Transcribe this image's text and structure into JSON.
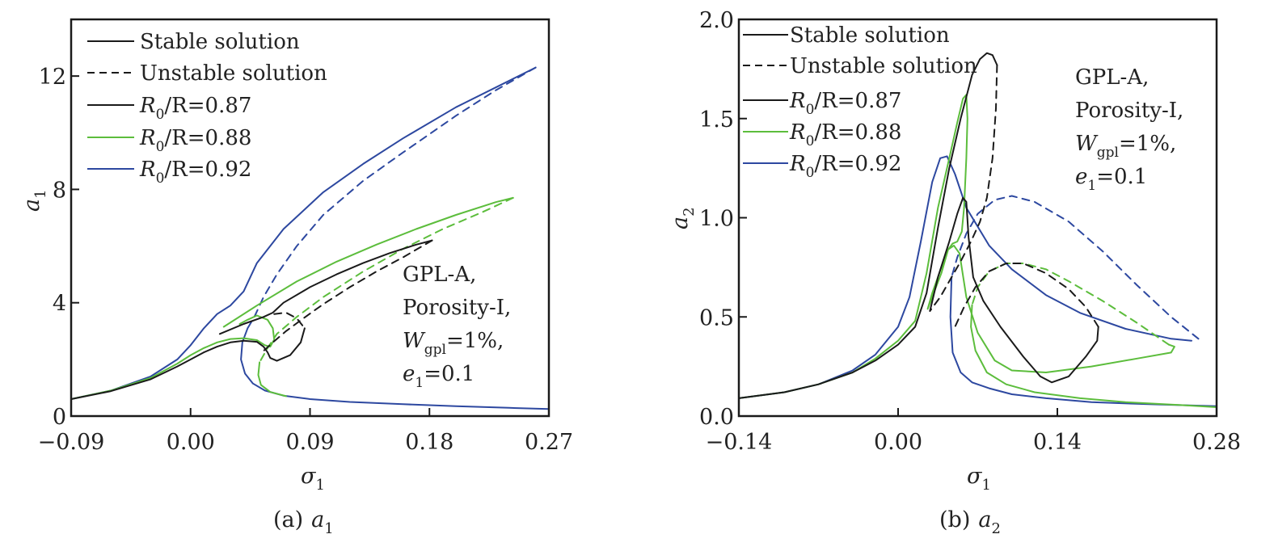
{
  "colors": {
    "r087": "#1a1a1a",
    "r088": "#5cbd3c",
    "r092": "#2d48a0",
    "axis": "#1a1a1a"
  },
  "chart_data": [
    {
      "type": "line",
      "caption": "(a) a1",
      "caption_prefix": "(a)",
      "caption_var": "a",
      "caption_sub": "1",
      "xlabel": "σ1",
      "xlabel_var": "σ",
      "xlabel_sub": "1",
      "ylabel": "a1",
      "ylabel_var": "a",
      "ylabel_sub": "1",
      "xlim": [
        -0.09,
        0.27
      ],
      "ylim": [
        0,
        14
      ],
      "xticks": [
        -0.09,
        0.0,
        0.09,
        0.18,
        0.27
      ],
      "xtick_labels": [
        "−0.09",
        "0.00",
        "0.09",
        "0.18",
        "0.27"
      ],
      "yticks": [
        0,
        4,
        8,
        12
      ],
      "ytick_labels": [
        "0",
        "4",
        "8",
        "12"
      ],
      "legend": {
        "placement": "top-left",
        "entries": [
          {
            "label": "Stable solution",
            "style": "solid",
            "color": "#1a1a1a"
          },
          {
            "label": "Unstable solution",
            "style": "dashed",
            "color": "#1a1a1a"
          },
          {
            "label": "R0/R=0.87",
            "var": "R",
            "sub": "0",
            "rest": "/R=0.87",
            "style": "solid",
            "color": "#1a1a1a"
          },
          {
            "label": "R0/R=0.88",
            "var": "R",
            "sub": "0",
            "rest": "/R=0.88",
            "style": "solid",
            "color": "#5cbd3c"
          },
          {
            "label": "R0/R=0.92",
            "var": "R",
            "sub": "0",
            "rest": "/R=0.92",
            "style": "solid",
            "color": "#2d48a0"
          }
        ]
      },
      "annotation": {
        "lines": [
          "GPL-A,",
          "Porosity-I,",
          "Wgpl=1%,",
          "e1=0.1"
        ],
        "line1": "GPL-A,",
        "line2": "Porosity-I,",
        "w_var": "W",
        "w_sub": "gpl",
        "w_rest": "=1%,",
        "e_var": "e",
        "e_sub": "1",
        "e_rest": "=0.1"
      },
      "series": [
        {
          "name": "R0/R=0.92 stable upper",
          "group": "r092",
          "style": "solid",
          "x": [
            -0.09,
            -0.06,
            -0.03,
            -0.01,
            0.0,
            0.01,
            0.02,
            0.03,
            0.04,
            0.05,
            0.07,
            0.1,
            0.13,
            0.16,
            0.2,
            0.23,
            0.26
          ],
          "y": [
            0.6,
            0.9,
            1.4,
            2.0,
            2.5,
            3.1,
            3.6,
            3.9,
            4.4,
            5.4,
            6.6,
            7.9,
            8.9,
            9.8,
            10.9,
            11.6,
            12.3
          ]
        },
        {
          "name": "R0/R=0.92 unstable",
          "group": "r092",
          "style": "dashed",
          "x": [
            0.26,
            0.23,
            0.2,
            0.16,
            0.13,
            0.1,
            0.08,
            0.065,
            0.055,
            0.048,
            0.043
          ],
          "y": [
            12.3,
            11.5,
            10.6,
            9.3,
            8.3,
            7.1,
            6.0,
            5.0,
            4.2,
            3.5,
            3.1
          ]
        },
        {
          "name": "R0/R=0.92 stable lower",
          "group": "r092",
          "style": "solid",
          "x": [
            0.043,
            0.039,
            0.038,
            0.041,
            0.047,
            0.056,
            0.07,
            0.09,
            0.12,
            0.16,
            0.2,
            0.24,
            0.27
          ],
          "y": [
            3.1,
            2.6,
            2.0,
            1.5,
            1.15,
            0.9,
            0.72,
            0.6,
            0.5,
            0.42,
            0.35,
            0.29,
            0.25
          ]
        },
        {
          "name": "R0/R=0.88 stable lower",
          "group": "r088",
          "style": "solid",
          "x": [
            -0.09,
            -0.06,
            -0.03,
            -0.01,
            0.0,
            0.01,
            0.02,
            0.03,
            0.04,
            0.05,
            0.056,
            0.06,
            0.063,
            0.062,
            0.058,
            0.05,
            0.043,
            0.037
          ],
          "y": [
            0.6,
            0.9,
            1.35,
            1.85,
            2.15,
            2.4,
            2.6,
            2.72,
            2.75,
            2.68,
            2.5,
            2.45,
            2.7,
            3.1,
            3.4,
            3.55,
            3.4,
            3.25
          ]
        },
        {
          "name": "R0/R=0.88 stable upper",
          "group": "r088",
          "style": "solid",
          "x": [
            0.025,
            0.05,
            0.08,
            0.11,
            0.14,
            0.17,
            0.2,
            0.23,
            0.243
          ],
          "y": [
            3.15,
            3.9,
            4.75,
            5.45,
            6.05,
            6.6,
            7.1,
            7.55,
            7.7
          ]
        },
        {
          "name": "R0/R=0.88 unstable",
          "group": "r088",
          "style": "dashed",
          "x": [
            0.243,
            0.22,
            0.19,
            0.16,
            0.13,
            0.1,
            0.08,
            0.065,
            0.058,
            0.052
          ],
          "y": [
            7.7,
            7.2,
            6.6,
            5.9,
            5.1,
            4.2,
            3.5,
            2.9,
            2.4,
            1.9
          ]
        },
        {
          "name": "R0/R=0.88 stable lower branch",
          "group": "r088",
          "style": "solid",
          "x": [
            0.052,
            0.051,
            0.053,
            0.06,
            0.072
          ],
          "y": [
            1.9,
            1.45,
            1.1,
            0.85,
            0.7
          ]
        },
        {
          "name": "R0/R=0.87 stable lower",
          "group": "r087",
          "style": "solid",
          "x": [
            -0.09,
            -0.06,
            -0.03,
            -0.01,
            0.0,
            0.01,
            0.02,
            0.03,
            0.04,
            0.05,
            0.055,
            0.058,
            0.06,
            0.065,
            0.075,
            0.083,
            0.086
          ],
          "y": [
            0.6,
            0.88,
            1.3,
            1.75,
            2.0,
            2.25,
            2.45,
            2.6,
            2.66,
            2.62,
            2.45,
            2.25,
            2.05,
            1.95,
            2.15,
            2.6,
            3.1
          ]
        },
        {
          "name": "R0/R=0.87 stable upper",
          "group": "r087",
          "style": "solid",
          "x": [
            0.022,
            0.04,
            0.055,
            0.062,
            0.07,
            0.09,
            0.11,
            0.13,
            0.15,
            0.17,
            0.182
          ],
          "y": [
            2.9,
            3.25,
            3.5,
            3.65,
            4.0,
            4.55,
            5.0,
            5.4,
            5.75,
            6.05,
            6.2
          ]
        },
        {
          "name": "R0/R=0.87 unstable",
          "group": "r087",
          "style": "dashed",
          "x": [
            0.182,
            0.16,
            0.14,
            0.12,
            0.1,
            0.085,
            0.072,
            0.062,
            0.055
          ],
          "y": [
            6.2,
            5.6,
            5.1,
            4.55,
            3.95,
            3.45,
            3.0,
            2.6,
            2.3
          ]
        },
        {
          "name": "R0/R=0.87 unstable loop",
          "group": "r087",
          "style": "dashed",
          "x": [
            0.063,
            0.072,
            0.08,
            0.086
          ],
          "y": [
            3.6,
            3.65,
            3.45,
            3.1
          ]
        }
      ]
    },
    {
      "type": "line",
      "caption": "(b) a2",
      "caption_prefix": "(b)",
      "caption_var": "a",
      "caption_sub": "2",
      "xlabel": "σ1",
      "xlabel_var": "σ",
      "xlabel_sub": "1",
      "ylabel": "a2",
      "ylabel_var": "a",
      "ylabel_sub": "2",
      "xlim": [
        -0.14,
        0.28
      ],
      "ylim": [
        0,
        2.0
      ],
      "xticks": [
        -0.14,
        0.0,
        0.14,
        0.28
      ],
      "xtick_labels": [
        "−0.14",
        "0.00",
        "0.14",
        "0.28"
      ],
      "yticks": [
        0.0,
        0.5,
        1.0,
        1.5,
        2.0
      ],
      "ytick_labels": [
        "0.0",
        "0.5",
        "1.0",
        "1.5",
        "2.0"
      ],
      "legend": {
        "placement": "top-left",
        "entries": [
          {
            "label": "Stable solution",
            "style": "solid",
            "color": "#1a1a1a"
          },
          {
            "label": "Unstable solution",
            "style": "dashed",
            "color": "#1a1a1a"
          },
          {
            "label": "R0/R=0.87",
            "var": "R",
            "sub": "0",
            "rest": "/R=0.87",
            "style": "solid",
            "color": "#1a1a1a"
          },
          {
            "label": "R0/R=0.88",
            "var": "R",
            "sub": "0",
            "rest": "/R=0.88",
            "style": "solid",
            "color": "#5cbd3c"
          },
          {
            "label": "R0/R=0.92",
            "var": "R",
            "sub": "0",
            "rest": "/R=0.92",
            "style": "solid",
            "color": "#2d48a0"
          }
        ]
      },
      "annotation": {
        "lines": [
          "GPL-A,",
          "Porosity-I,",
          "Wgpl=1%,",
          "e1=0.1"
        ],
        "line1": "GPL-A,",
        "line2": "Porosity-I,",
        "w_var": "W",
        "w_sub": "gpl",
        "w_rest": "=1%,",
        "e_var": "e",
        "e_sub": "1",
        "e_rest": "=0.1"
      },
      "series": [
        {
          "name": "R0/R=0.92 stable left",
          "group": "r092",
          "style": "solid",
          "x": [
            -0.14,
            -0.1,
            -0.07,
            -0.04,
            -0.02,
            0.0,
            0.01,
            0.02,
            0.03,
            0.037,
            0.043,
            0.05,
            0.06,
            0.08,
            0.1,
            0.13,
            0.16,
            0.2,
            0.24,
            0.258
          ],
          "y": [
            0.09,
            0.12,
            0.16,
            0.23,
            0.31,
            0.45,
            0.6,
            0.88,
            1.18,
            1.3,
            1.31,
            1.22,
            1.05,
            0.86,
            0.74,
            0.61,
            0.52,
            0.44,
            0.39,
            0.38
          ]
        },
        {
          "name": "R0/R=0.92 unstable",
          "group": "r092",
          "style": "dashed",
          "x": [
            0.264,
            0.24,
            0.21,
            0.18,
            0.15,
            0.12,
            0.1,
            0.085,
            0.07,
            0.06,
            0.052,
            0.047
          ],
          "y": [
            0.39,
            0.5,
            0.66,
            0.83,
            0.98,
            1.08,
            1.11,
            1.09,
            1.02,
            0.92,
            0.8,
            0.7
          ]
        },
        {
          "name": "R0/R=0.92 stable lower",
          "group": "r092",
          "style": "solid",
          "x": [
            0.047,
            0.046,
            0.048,
            0.055,
            0.065,
            0.08,
            0.1,
            0.13,
            0.17,
            0.22,
            0.28
          ],
          "y": [
            0.7,
            0.5,
            0.32,
            0.22,
            0.17,
            0.14,
            0.11,
            0.09,
            0.07,
            0.06,
            0.05
          ]
        },
        {
          "name": "R0/R=0.88 stable left",
          "group": "r088",
          "style": "solid",
          "x": [
            -0.14,
            -0.1,
            -0.07,
            -0.04,
            -0.02,
            0.0,
            0.015,
            0.025,
            0.035,
            0.045,
            0.052,
            0.057,
            0.06,
            0.061,
            0.06,
            0.058
          ],
          "y": [
            0.09,
            0.12,
            0.16,
            0.22,
            0.29,
            0.38,
            0.48,
            0.72,
            1.05,
            1.3,
            1.48,
            1.6,
            1.62,
            1.5,
            1.3,
            1.05
          ]
        },
        {
          "name": "R0/R=0.88 inner",
          "group": "r088",
          "style": "solid",
          "x": [
            0.058,
            0.056,
            0.052,
            0.048,
            0.044,
            0.038,
            0.03,
            0.026,
            0.03,
            0.038,
            0.044,
            0.049,
            0.054,
            0.06,
            0.07,
            0.085,
            0.1,
            0.13,
            0.17,
            0.21,
            0.24,
            0.243,
            0.238
          ],
          "y": [
            1.05,
            0.93,
            0.88,
            0.87,
            0.84,
            0.72,
            0.6,
            0.54,
            0.62,
            0.75,
            0.84,
            0.86,
            0.82,
            0.6,
            0.42,
            0.28,
            0.23,
            0.22,
            0.25,
            0.29,
            0.32,
            0.35,
            0.36
          ]
        },
        {
          "name": "R0/R=0.88 unstable",
          "group": "r088",
          "style": "dashed",
          "x": [
            0.238,
            0.21,
            0.18,
            0.15,
            0.13,
            0.11,
            0.095,
            0.08,
            0.07,
            0.065
          ],
          "y": [
            0.36,
            0.47,
            0.58,
            0.68,
            0.74,
            0.77,
            0.77,
            0.73,
            0.65,
            0.56
          ]
        },
        {
          "name": "R0/R=0.88 stable low",
          "group": "r088",
          "style": "solid",
          "x": [
            0.065,
            0.064,
            0.068,
            0.078,
            0.095,
            0.12,
            0.16,
            0.2,
            0.25,
            0.28
          ],
          "y": [
            0.56,
            0.45,
            0.33,
            0.22,
            0.16,
            0.12,
            0.09,
            0.07,
            0.055,
            0.045
          ]
        },
        {
          "name": "R0/R=0.87 stable left",
          "group": "r087",
          "style": "solid",
          "x": [
            -0.14,
            -0.1,
            -0.07,
            -0.04,
            -0.02,
            0.0,
            0.015,
            0.025,
            0.035,
            0.045,
            0.055,
            0.065,
            0.072,
            0.078,
            0.083,
            0.087
          ],
          "y": [
            0.09,
            0.12,
            0.16,
            0.22,
            0.28,
            0.36,
            0.45,
            0.62,
            0.95,
            1.25,
            1.5,
            1.72,
            1.8,
            1.83,
            1.82,
            1.77
          ]
        },
        {
          "name": "R0/R=0.87 unstable top",
          "group": "r087",
          "style": "dashed",
          "x": [
            0.087,
            0.086,
            0.083,
            0.078,
            0.072,
            0.064,
            0.055,
            0.045,
            0.037,
            0.028
          ],
          "y": [
            1.77,
            1.55,
            1.3,
            1.1,
            0.98,
            0.88,
            0.78,
            0.68,
            0.6,
            0.53
          ]
        },
        {
          "name": "R0/R=0.87 stable inner",
          "group": "r087",
          "style": "solid",
          "x": [
            0.028,
            0.035,
            0.045,
            0.052,
            0.057,
            0.06,
            0.062,
            0.066,
            0.075,
            0.09,
            0.11,
            0.125,
            0.135,
            0.15,
            0.165,
            0.175,
            0.176
          ],
          "y": [
            0.53,
            0.7,
            0.88,
            1.02,
            1.1,
            1.08,
            0.9,
            0.7,
            0.58,
            0.45,
            0.3,
            0.2,
            0.17,
            0.2,
            0.3,
            0.38,
            0.45
          ]
        },
        {
          "name": "R0/R=0.87 unstable right",
          "group": "r087",
          "style": "dashed",
          "x": [
            0.176,
            0.165,
            0.15,
            0.13,
            0.11,
            0.095,
            0.08,
            0.068,
            0.058,
            0.05
          ],
          "y": [
            0.45,
            0.55,
            0.64,
            0.72,
            0.77,
            0.77,
            0.73,
            0.65,
            0.55,
            0.45
          ]
        }
      ]
    }
  ]
}
